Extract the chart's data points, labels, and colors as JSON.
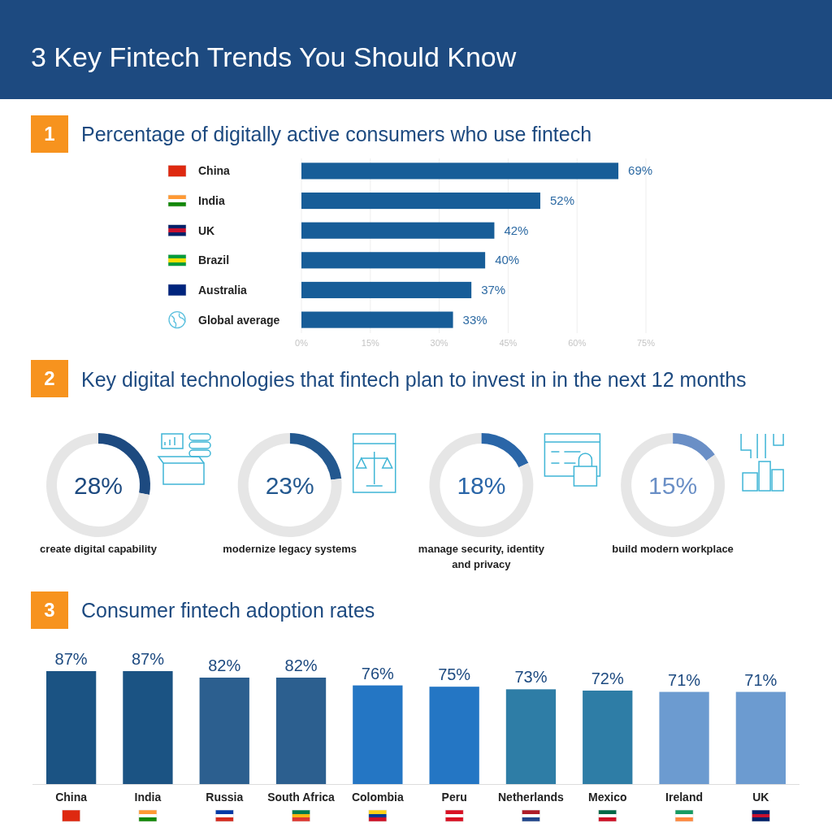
{
  "chart_data": [
    {
      "type": "other",
      "title": "3 Key Fintech Trends You Should Know"
    },
    {
      "type": "bar",
      "orientation": "horizontal",
      "title": "Percentage of digitally active consumers who use fintech",
      "annotations": [
        "1"
      ],
      "categories": [
        "China",
        "India",
        "UK",
        "Brazil",
        "Australia",
        "Global average"
      ],
      "values": [
        69,
        52,
        42,
        40,
        37,
        33
      ],
      "color": "#175d98",
      "value_labels": [
        "69%",
        "52%",
        "42%",
        "40%",
        "37%",
        "33%"
      ],
      "xlim": [
        0,
        75
      ],
      "xticks": [
        {
          "value": 0,
          "label": "0%"
        },
        {
          "value": 15,
          "label": "15%"
        },
        {
          "value": 30,
          "label": "30%"
        },
        {
          "value": 45,
          "label": "45%"
        },
        {
          "value": 60,
          "label": "60%"
        },
        {
          "value": 75,
          "label": "75%"
        }
      ],
      "grid": "x"
    },
    {
      "type": "other",
      "title": "Key digital technologies that fintech plan to invest in in the next 12 months",
      "annotations": [
        "2"
      ]
    },
    {
      "type": "donut",
      "title": "create digital capability",
      "categories": [
        null,
        null
      ],
      "values": [
        28,
        72
      ],
      "colors": [
        "#1d4a80",
        "#e6e6e6"
      ],
      "annotations": [
        "28%"
      ]
    },
    {
      "type": "donut",
      "title": "modernize legacy systems",
      "categories": [
        null,
        null
      ],
      "values": [
        23,
        77
      ],
      "colors": [
        "#23588f",
        "#e6e6e6"
      ],
      "annotations": [
        "23%"
      ]
    },
    {
      "type": "donut",
      "title": "manage security, identity and privacy",
      "categories": [
        null,
        null
      ],
      "values": [
        18,
        82
      ],
      "colors": [
        "#2a66a8",
        "#e6e6e6"
      ],
      "annotations": [
        "18%"
      ]
    },
    {
      "type": "donut",
      "title": "build modern workplace",
      "categories": [
        null,
        null
      ],
      "values": [
        15,
        85
      ],
      "colors": [
        "#6a8fc6",
        "#e6e6e6"
      ],
      "annotations": [
        "15%"
      ]
    },
    {
      "type": "bar",
      "title": "Consumer fintech adoption rates",
      "annotations": [
        "3"
      ],
      "categories": [
        "China",
        "India",
        "Russia",
        "South Africa",
        "Colombia",
        "Peru",
        "Netherlands",
        "Mexico",
        "Ireland",
        "UK"
      ],
      "values": [
        87,
        87,
        82,
        82,
        76,
        75,
        73,
        72,
        71,
        71
      ],
      "colors": [
        "#1b5383",
        "#1b5383",
        "#2c5f8f",
        "#2c5f8f",
        "#2476c4",
        "#2476c4",
        "#2e7da6",
        "#2e7da6",
        "#6c9bd0",
        "#6c9bd0"
      ],
      "value_labels": [
        "87%",
        "87%",
        "82%",
        "82%",
        "76%",
        "75%",
        "73%",
        "72%",
        "71%",
        "71%"
      ]
    }
  ]
}
